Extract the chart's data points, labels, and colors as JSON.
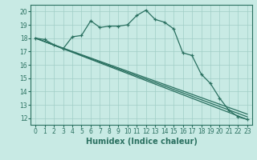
{
  "title": "",
  "xlabel": "Humidex (Indice chaleur)",
  "bg_color": "#c8eae4",
  "grid_color": "#a0cec6",
  "line_color": "#2a7060",
  "xlim": [
    -0.5,
    23.5
  ],
  "ylim": [
    11.5,
    20.5
  ],
  "yticks": [
    12,
    13,
    14,
    15,
    16,
    17,
    18,
    19,
    20
  ],
  "xticks": [
    0,
    1,
    2,
    3,
    4,
    5,
    6,
    7,
    8,
    9,
    10,
    11,
    12,
    13,
    14,
    15,
    16,
    17,
    18,
    19,
    20,
    21,
    22,
    23
  ],
  "line1_x": [
    0,
    1,
    2,
    3,
    4,
    5,
    6,
    7,
    8,
    9,
    10,
    11,
    12,
    13,
    14,
    15,
    16,
    17,
    18,
    19,
    20,
    21,
    22,
    23
  ],
  "line1_y": [
    18.0,
    17.9,
    17.5,
    17.2,
    18.1,
    18.2,
    19.3,
    18.8,
    18.9,
    18.9,
    19.0,
    19.7,
    20.1,
    19.4,
    19.2,
    18.7,
    16.9,
    16.7,
    15.3,
    14.6,
    13.5,
    12.6,
    12.1,
    11.9
  ],
  "line2_x": [
    0,
    23
  ],
  "line2_y": [
    18.0,
    11.9
  ],
  "line3_x": [
    0,
    23
  ],
  "line3_y": [
    18.0,
    12.1
  ],
  "line4_x": [
    0,
    23
  ],
  "line4_y": [
    18.0,
    12.3
  ],
  "tick_fontsize": 5.5,
  "xlabel_fontsize": 7
}
